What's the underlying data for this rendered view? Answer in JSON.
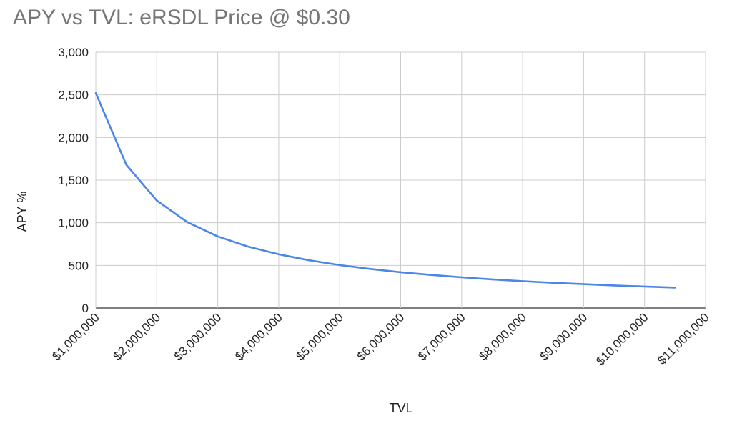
{
  "chart_data": {
    "type": "line",
    "title": "APY vs TVL: eRSDL Price @ $0.30",
    "xlabel": "TVL",
    "ylabel": "APY %",
    "xlim": [
      1000000,
      11000000
    ],
    "ylim": [
      0,
      3000
    ],
    "x_ticks": [
      1000000,
      2000000,
      3000000,
      4000000,
      5000000,
      6000000,
      7000000,
      8000000,
      9000000,
      10000000,
      11000000
    ],
    "x_tick_labels": [
      "$1,000,000",
      "$2,000,000",
      "$3,000,000",
      "$4,000,000",
      "$5,000,000",
      "$6,000,000",
      "$7,000,000",
      "$8,000,000",
      "$9,000,000",
      "$10,000,000",
      "$11,000,000"
    ],
    "y_ticks": [
      0,
      500,
      1000,
      1500,
      2000,
      2500,
      3000
    ],
    "y_tick_labels": [
      "0",
      "500",
      "1,000",
      "1,500",
      "2,000",
      "2,500",
      "3,000"
    ],
    "grid": true,
    "legend": "none",
    "series": [
      {
        "color": "#4a86e8",
        "x": [
          1000000,
          1500000,
          2000000,
          2500000,
          3000000,
          3500000,
          4000000,
          4500000,
          5000000,
          5500000,
          6000000,
          6500000,
          7000000,
          7500000,
          8000000,
          8500000,
          9000000,
          9500000,
          10000000,
          10500000
        ],
        "y": [
          2520,
          1680,
          1260,
          1008,
          840,
          720,
          630,
          560,
          504,
          458,
          420,
          388,
          360,
          336,
          315,
          296,
          280,
          265,
          252,
          240
        ]
      }
    ]
  }
}
